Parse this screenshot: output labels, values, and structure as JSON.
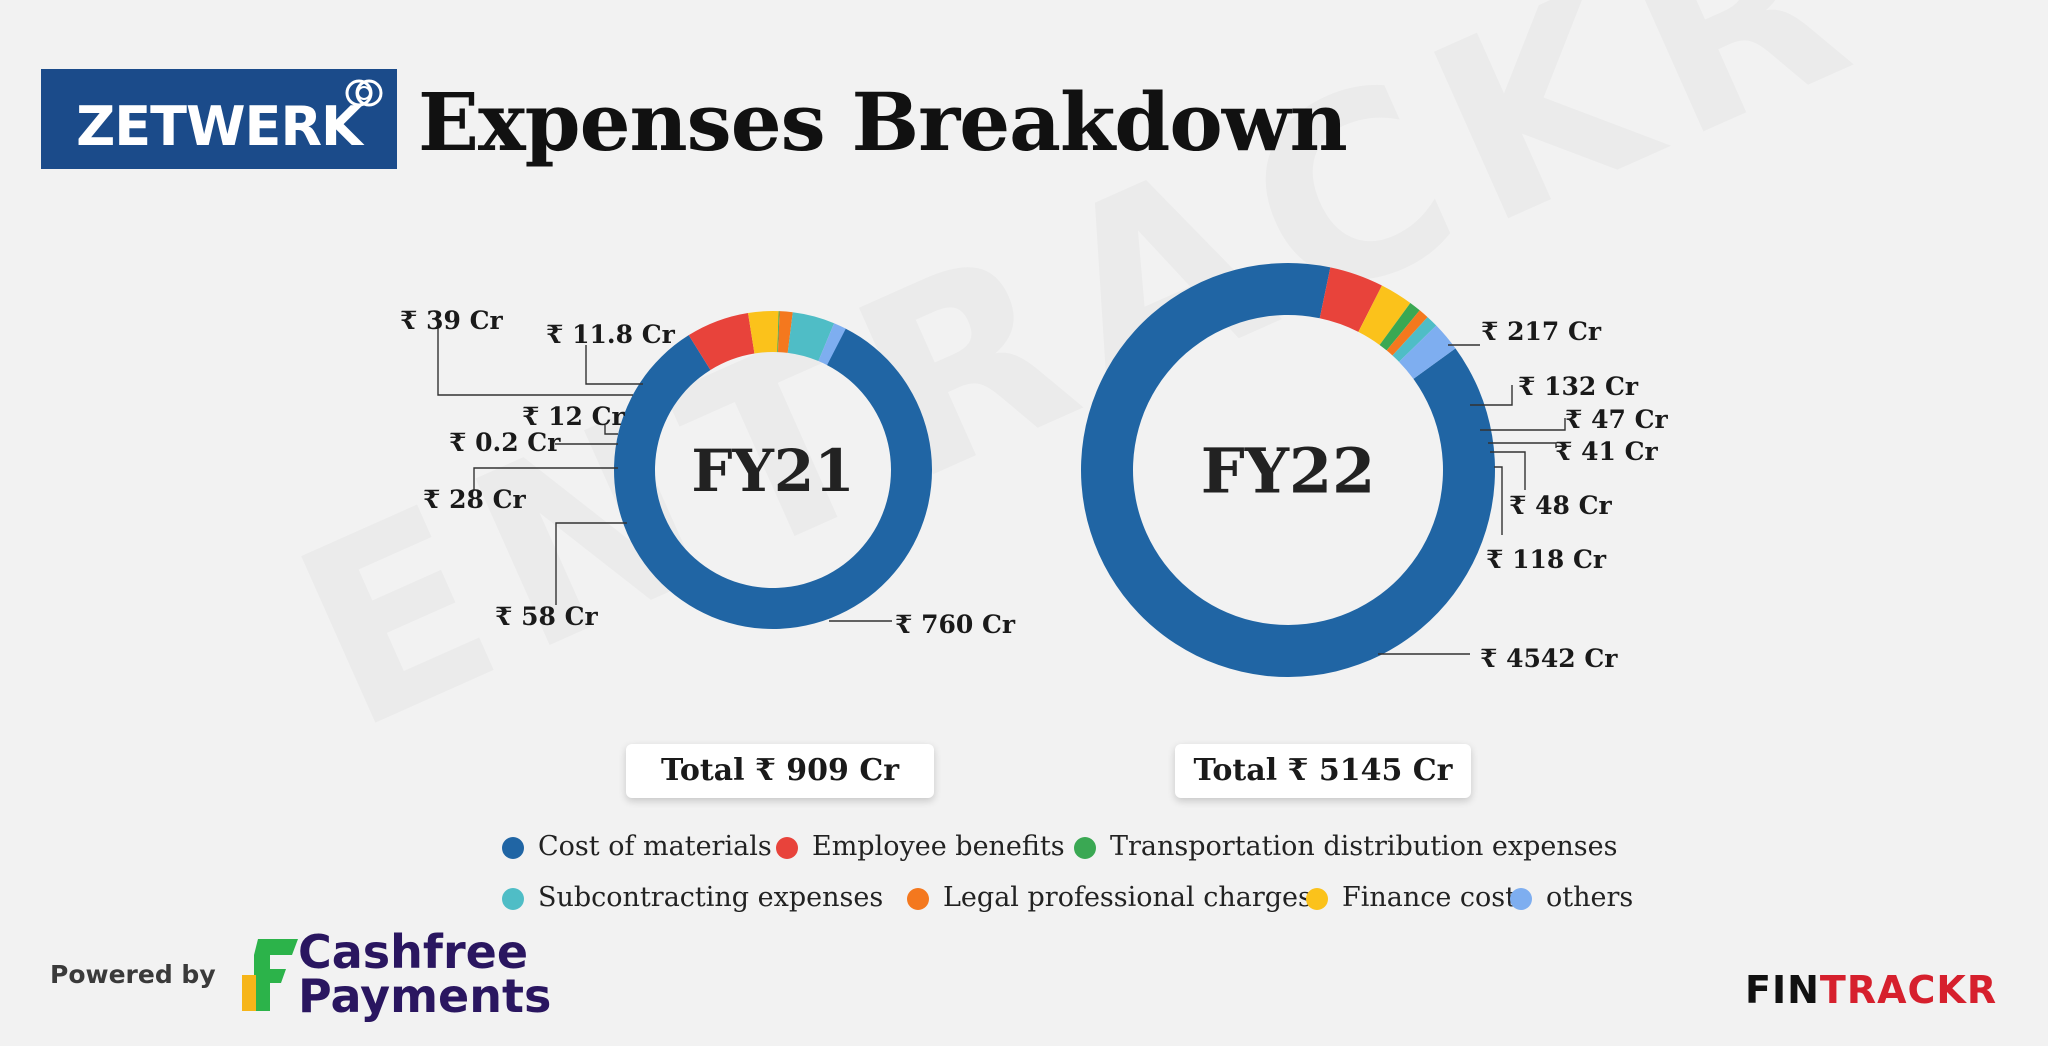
{
  "header": {
    "logo_text": "ZETWERK",
    "title": "Expenses Breakdown"
  },
  "watermark": "ENTRACKR",
  "colors": {
    "Cost of materials": "#2065a4",
    "Employee benefits": "#e8433b",
    "Transportation distribution expenses": "#3aa853",
    "Subcontracting expenses": "#4fbdc6",
    "Legal professional charges": "#f4781e",
    "Finance cost": "#fbc21b",
    "others": "#7eaef0",
    "logo_bg": "#1b4b8a",
    "cashfree_green": "#2cb34a",
    "cashfree_yellow": "#f6b519",
    "fintrackr_red": "#d6202d"
  },
  "chart_data": [
    {
      "type": "pie",
      "subtype": "donut",
      "center_label": "FY21",
      "total": "Total ₹ 909 Cr",
      "slices": [
        {
          "category": "Cost of materials",
          "value": 760,
          "label": "₹ 760 Cr"
        },
        {
          "category": "Employee benefits",
          "value": 58,
          "label": "₹ 58 Cr"
        },
        {
          "category": "Finance cost",
          "value": 28,
          "label": "₹ 28 Cr"
        },
        {
          "category": "Transportation distribution expenses",
          "value": 0.2,
          "label": "₹ 0.2 Cr"
        },
        {
          "category": "Legal professional charges",
          "value": 12,
          "label": "₹ 12 Cr"
        },
        {
          "category": "Subcontracting expenses",
          "value": 39,
          "label": "₹ 39 Cr"
        },
        {
          "category": "others",
          "value": 11.8,
          "label": "₹ 11.8 Cr"
        }
      ]
    },
    {
      "type": "pie",
      "subtype": "donut",
      "center_label": "FY22",
      "total": "Total ₹ 5145 Cr",
      "slices": [
        {
          "category": "Cost of materials",
          "value": 4542,
          "label": "₹ 4542 Cr"
        },
        {
          "category": "Employee benefits",
          "value": 217,
          "label": "₹ 217 Cr"
        },
        {
          "category": "Finance cost",
          "value": 132,
          "label": "₹ 132 Cr"
        },
        {
          "category": "Transportation distribution expenses",
          "value": 47,
          "label": "₹ 47 Cr"
        },
        {
          "category": "Legal professional charges",
          "value": 41,
          "label": "₹ 41 Cr"
        },
        {
          "category": "Subcontracting expenses",
          "value": 48,
          "label": "₹ 48 Cr"
        },
        {
          "category": "others",
          "value": 118,
          "label": "₹ 118 Cr"
        }
      ]
    }
  ],
  "legend": [
    {
      "label": "Cost of materials",
      "color": "#2065a4"
    },
    {
      "label": "Employee benefits",
      "color": "#e8433b"
    },
    {
      "label": "Transportation distribution expenses",
      "color": "#3aa853"
    },
    {
      "label": "Subcontracting expenses",
      "color": "#4fbdc6"
    },
    {
      "label": "Legal professional charges",
      "color": "#f4781e"
    },
    {
      "label": "Finance cost",
      "color": "#fbc21b"
    },
    {
      "label": "others",
      "color": "#7eaef0"
    }
  ],
  "footer": {
    "powered_by": "Powered by",
    "cashfree_line1": "Cashfree",
    "cashfree_line2": "Payments",
    "brand_part1": "FIN",
    "brand_part2": "TRACKR"
  }
}
